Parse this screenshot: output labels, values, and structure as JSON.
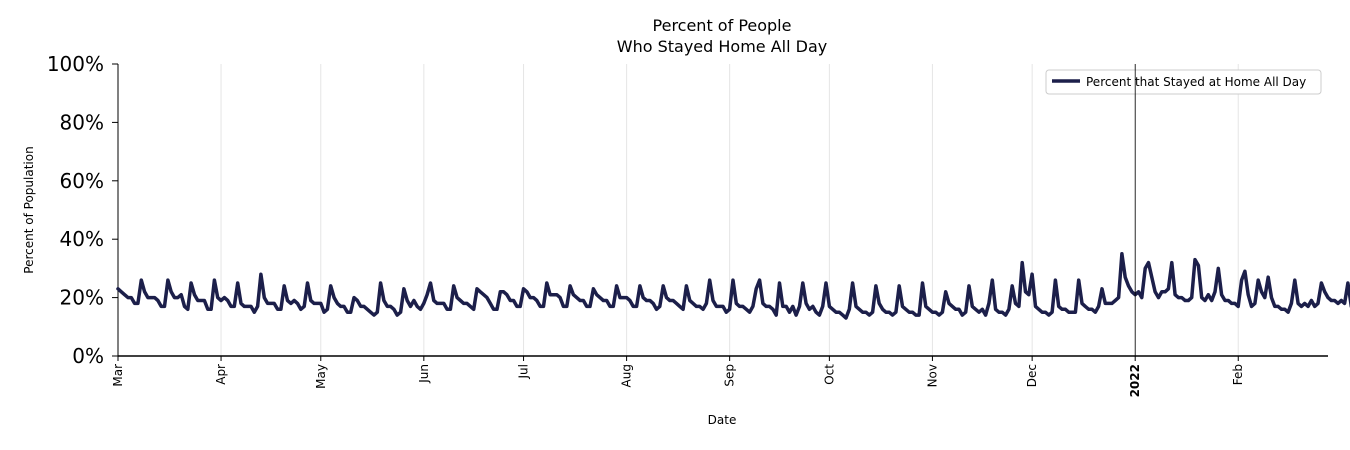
{
  "chart_data": {
    "type": "line",
    "title_line1": "Percent of People",
    "title_line2": "Who Stayed Home All Day",
    "xlabel": "Date",
    "ylabel": "Percent of Population",
    "ylim": [
      0,
      100
    ],
    "yticks": [
      0,
      20,
      40,
      60,
      80,
      100
    ],
    "ytick_labels": [
      "0%",
      "20%",
      "40%",
      "60%",
      "80%",
      "100%"
    ],
    "x_start": "2021-03-01",
    "x_end": "2022-02-28",
    "xticks": [
      {
        "date": "2021-03-01",
        "label": "Mar",
        "bold": false
      },
      {
        "date": "2021-04-01",
        "label": "Apr",
        "bold": false
      },
      {
        "date": "2021-05-01",
        "label": "May",
        "bold": false
      },
      {
        "date": "2021-06-01",
        "label": "Jun",
        "bold": false
      },
      {
        "date": "2021-07-01",
        "label": "Jul",
        "bold": false
      },
      {
        "date": "2021-08-01",
        "label": "Aug",
        "bold": false
      },
      {
        "date": "2021-09-01",
        "label": "Sep",
        "bold": false
      },
      {
        "date": "2021-10-01",
        "label": "Oct",
        "bold": false
      },
      {
        "date": "2021-11-01",
        "label": "Nov",
        "bold": false
      },
      {
        "date": "2021-12-01",
        "label": "Dec",
        "bold": false
      },
      {
        "date": "2022-01-01",
        "label": "2022",
        "bold": true
      },
      {
        "date": "2022-02-01",
        "label": "Feb",
        "bold": false
      }
    ],
    "vline_date": "2022-01-01",
    "legend_position": "top-right",
    "series": [
      {
        "name": "Percent that Stayed at Home All Day",
        "color": "#1c1f4a",
        "start": "2021-03-01",
        "values": [
          23,
          22,
          21,
          20,
          20,
          18,
          18,
          26,
          22,
          20,
          20,
          20,
          19,
          17,
          17,
          26,
          22,
          20,
          20,
          21,
          17,
          16,
          25,
          21,
          19,
          19,
          19,
          16,
          16,
          26,
          20,
          19,
          20,
          19,
          17,
          17,
          25,
          18,
          17,
          17,
          17,
          15,
          17,
          28,
          20,
          18,
          18,
          18,
          16,
          16,
          24,
          19,
          18,
          19,
          18,
          16,
          17,
          25,
          19,
          18,
          18,
          18,
          15,
          16,
          24,
          20,
          18,
          17,
          17,
          15,
          15,
          20,
          19,
          17,
          17,
          16,
          15,
          14,
          15,
          25,
          19,
          17,
          17,
          16,
          14,
          15,
          23,
          19,
          17,
          19,
          17,
          16,
          18,
          21,
          25,
          19,
          18,
          18,
          18,
          16,
          16,
          24,
          20,
          19,
          18,
          18,
          17,
          16,
          23,
          22,
          21,
          20,
          18,
          16,
          16,
          22,
          22,
          21,
          19,
          19,
          17,
          17,
          23,
          22,
          20,
          20,
          19,
          17,
          17,
          25,
          21,
          21,
          21,
          20,
          17,
          17,
          24,
          21,
          20,
          19,
          19,
          17,
          17,
          23,
          21,
          20,
          19,
          19,
          17,
          17,
          24,
          20,
          20,
          20,
          19,
          17,
          17,
          24,
          20,
          19,
          19,
          18,
          16,
          17,
          24,
          20,
          19,
          19,
          18,
          17,
          16,
          24,
          19,
          18,
          17,
          17,
          16,
          18,
          26,
          19,
          17,
          17,
          17,
          15,
          16,
          26,
          18,
          17,
          17,
          16,
          15,
          17,
          23,
          26,
          18,
          17,
          17,
          16,
          14,
          25,
          17,
          17,
          15,
          17,
          14,
          17,
          25,
          18,
          16,
          17,
          15,
          14,
          17,
          25,
          17,
          16,
          15,
          15,
          14,
          13,
          16,
          25,
          17,
          16,
          15,
          15,
          14,
          15,
          24,
          18,
          16,
          15,
          15,
          14,
          15,
          24,
          17,
          16,
          15,
          15,
          14,
          14,
          25,
          17,
          16,
          15,
          15,
          14,
          15,
          22,
          18,
          17,
          16,
          16,
          14,
          15,
          24,
          17,
          16,
          15,
          16,
          14,
          18,
          26,
          16,
          15,
          15,
          14,
          16,
          24,
          18,
          17,
          32,
          22,
          21,
          28,
          17,
          16,
          15,
          15,
          14,
          15,
          26,
          17,
          16,
          16,
          15,
          15,
          15,
          26,
          18,
          17,
          16,
          16,
          15,
          17,
          23,
          18,
          18,
          18,
          19,
          20,
          35,
          27,
          24,
          22,
          21,
          22,
          20,
          30,
          32,
          27,
          22,
          20,
          22,
          22,
          23,
          32,
          21,
          20,
          20,
          19,
          19,
          20,
          33,
          31,
          20,
          19,
          21,
          19,
          22,
          30,
          21,
          19,
          19,
          18,
          18,
          17,
          26,
          29,
          21,
          17,
          18,
          26,
          22,
          20,
          27,
          20,
          17,
          17,
          16,
          16,
          15,
          18,
          26,
          18,
          17,
          18,
          17,
          19,
          17,
          18,
          25,
          22,
          20,
          19,
          19,
          18,
          19,
          18,
          25,
          17
        ]
      }
    ]
  }
}
